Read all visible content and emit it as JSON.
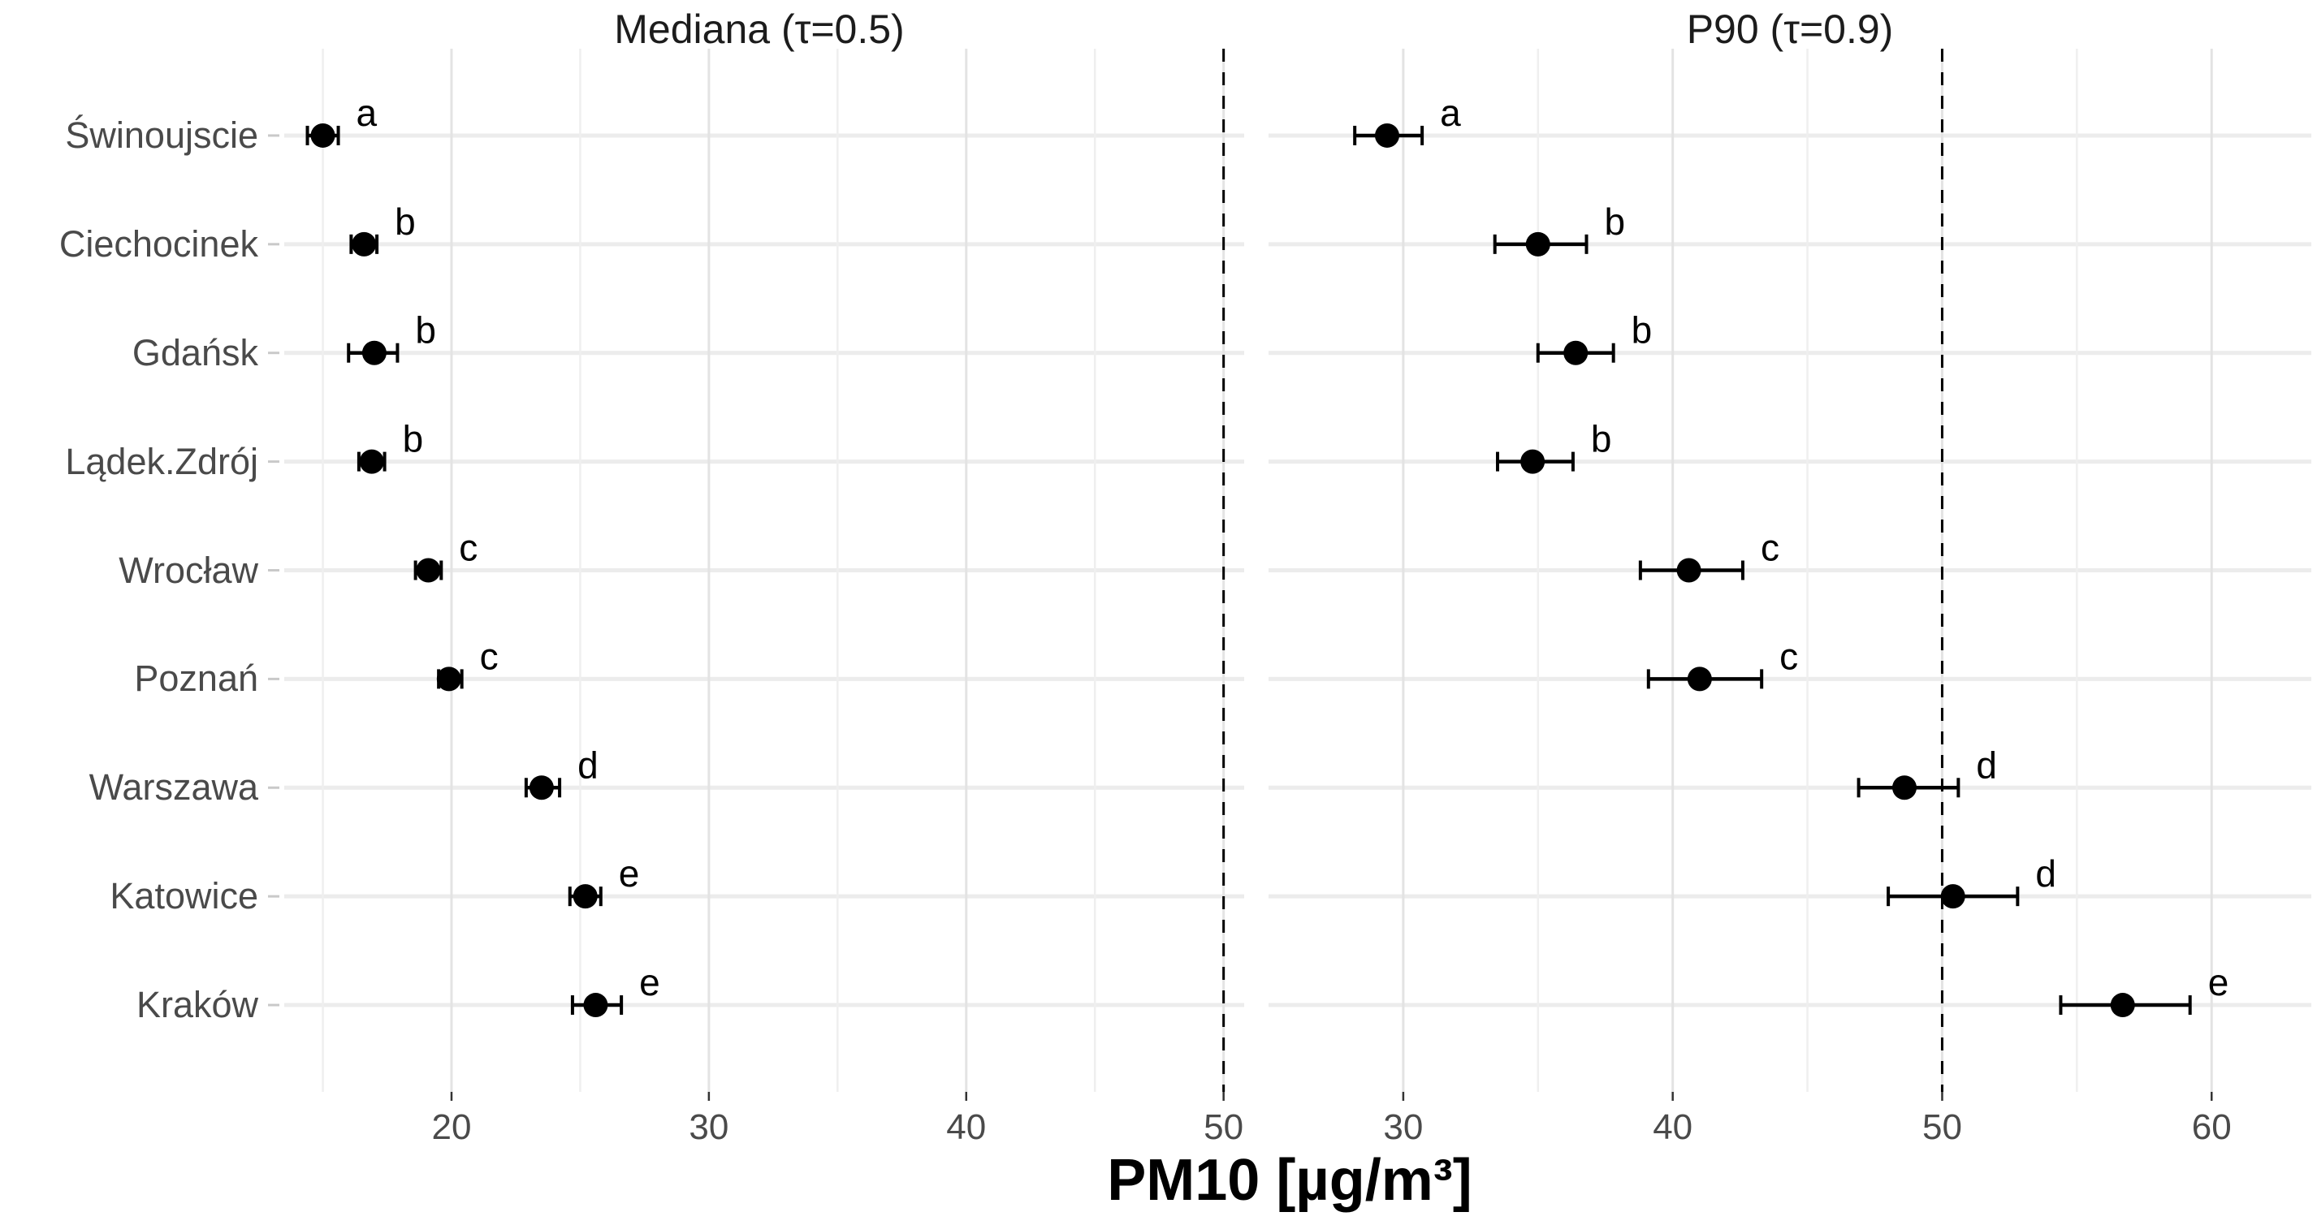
{
  "figure": {
    "x_axis_title": "PM10 [µg/m³]",
    "background_color": "#ffffff",
    "colors": {
      "point": "#000000",
      "error_bar": "#000000",
      "significance_letter": "#000000",
      "reference_line": "#000000",
      "grid_major": "#e3e3e3",
      "grid_minor": "#efefef",
      "row_gridline": "#ececec",
      "axis_text": "#4a4a4a",
      "title_text": "#1c1c1c",
      "y_tick": "#c9c9c9",
      "x_tick": "#333333"
    }
  },
  "chart_data": {
    "type": "scatter",
    "variant": "horizontal dot plot with error bars (quantile regression estimates), 2 facets, shared y categories",
    "categories": [
      "Świnoujscie",
      "Ciechocinek",
      "Gdańsk",
      "Lądek.Zdrój",
      "Wrocław",
      "Poznań",
      "Warszawa",
      "Katowice",
      "Kraków"
    ],
    "xlabel": "PM10 [µg/m³]",
    "grid": "on",
    "legend": "none",
    "panels": [
      {
        "title": "Mediana (τ=0.5)",
        "xdomain": [
          13.5,
          50.8
        ],
        "major_ticks": [
          20,
          30,
          40,
          50
        ],
        "minor_ticks": [
          15,
          25,
          35,
          45
        ],
        "ref_line": 50,
        "points": [
          {
            "city": "Świnoujscie",
            "value": 15.0,
            "lo": 14.4,
            "hi": 15.6,
            "letter": "a"
          },
          {
            "city": "Ciechocinek",
            "value": 16.6,
            "lo": 16.1,
            "hi": 17.1,
            "letter": "b"
          },
          {
            "city": "Gdańsk",
            "value": 17.0,
            "lo": 16.0,
            "hi": 17.9,
            "letter": "b"
          },
          {
            "city": "Lądek.Zdrój",
            "value": 16.9,
            "lo": 16.4,
            "hi": 17.4,
            "letter": "b"
          },
          {
            "city": "Wrocław",
            "value": 19.1,
            "lo": 18.6,
            "hi": 19.6,
            "letter": "c"
          },
          {
            "city": "Poznań",
            "value": 19.9,
            "lo": 19.5,
            "hi": 20.4,
            "letter": "c"
          },
          {
            "city": "Warszawa",
            "value": 23.5,
            "lo": 22.9,
            "hi": 24.2,
            "letter": "d"
          },
          {
            "city": "Katowice",
            "value": 25.2,
            "lo": 24.6,
            "hi": 25.8,
            "letter": "e"
          },
          {
            "city": "Kraków",
            "value": 25.6,
            "lo": 24.7,
            "hi": 26.6,
            "letter": "e"
          }
        ]
      },
      {
        "title": "P90 (τ=0.9)",
        "xdomain": [
          25.0,
          63.7
        ],
        "major_ticks": [
          30,
          40,
          50,
          60
        ],
        "minor_ticks": [
          35,
          45,
          55
        ],
        "ref_line": 50,
        "points": [
          {
            "city": "Świnoujscie",
            "value": 29.4,
            "lo": 28.2,
            "hi": 30.7,
            "letter": "a"
          },
          {
            "city": "Ciechocinek",
            "value": 35.0,
            "lo": 33.4,
            "hi": 36.8,
            "letter": "b"
          },
          {
            "city": "Gdańsk",
            "value": 36.4,
            "lo": 35.0,
            "hi": 37.8,
            "letter": "b"
          },
          {
            "city": "Lądek.Zdrój",
            "value": 34.8,
            "lo": 33.5,
            "hi": 36.3,
            "letter": "b"
          },
          {
            "city": "Wrocław",
            "value": 40.6,
            "lo": 38.8,
            "hi": 42.6,
            "letter": "c"
          },
          {
            "city": "Poznań",
            "value": 41.0,
            "lo": 39.1,
            "hi": 43.3,
            "letter": "c"
          },
          {
            "city": "Warszawa",
            "value": 48.6,
            "lo": 46.9,
            "hi": 50.6,
            "letter": "d"
          },
          {
            "city": "Katowice",
            "value": 50.4,
            "lo": 48.0,
            "hi": 52.8,
            "letter": "d"
          },
          {
            "city": "Kraków",
            "value": 56.7,
            "lo": 54.4,
            "hi": 59.2,
            "letter": "e"
          }
        ]
      }
    ]
  }
}
